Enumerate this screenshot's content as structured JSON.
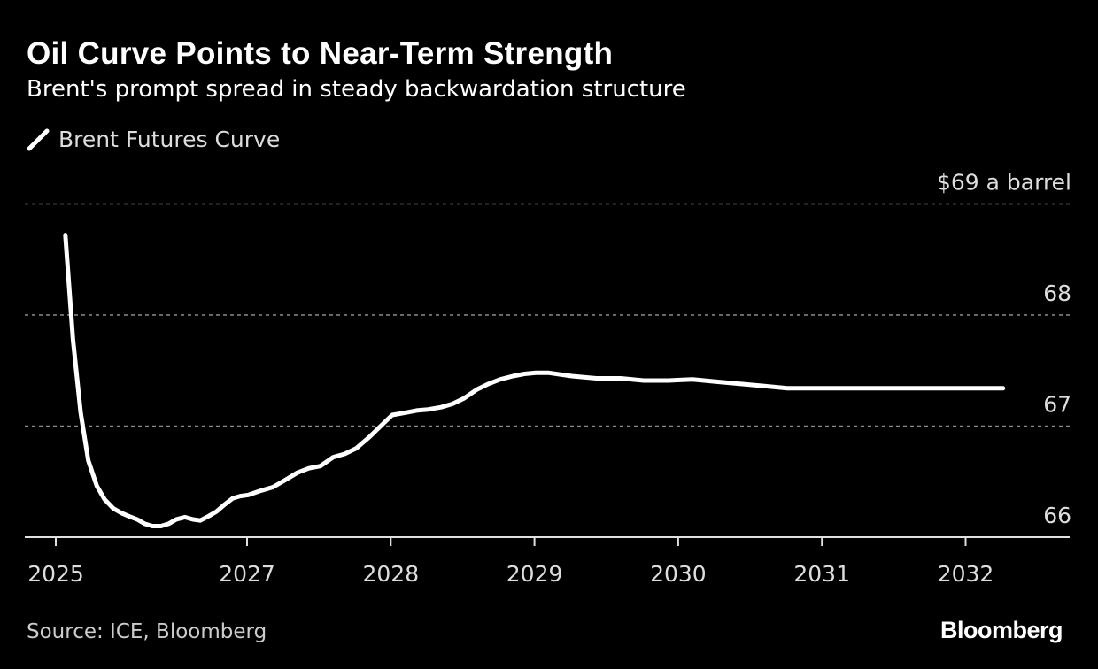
{
  "chart_data": {
    "type": "line",
    "title": "Oil Curve Points to Near-Term Strength",
    "subtitle": "Brent's prompt spread in steady backwardation structure",
    "series": [
      {
        "name": "Brent Futures Curve",
        "x": [
          2025.1,
          2025.18,
          2025.26,
          2025.34,
          2025.43,
          2025.51,
          2025.6,
          2025.68,
          2025.76,
          2025.85,
          2025.93,
          2026.01,
          2026.1,
          2026.18,
          2026.26,
          2026.35,
          2026.43,
          2026.51,
          2026.6,
          2026.68,
          2026.76,
          2026.85,
          2026.93,
          2027.01,
          2027.1,
          2027.18,
          2027.26,
          2027.35,
          2027.43,
          2027.51,
          2027.6,
          2027.68,
          2027.76,
          2027.85,
          2027.93,
          2028.01,
          2028.1,
          2028.18,
          2028.26,
          2028.35,
          2028.43,
          2028.51,
          2028.6,
          2028.68,
          2028.76,
          2028.85,
          2028.93,
          2029.01,
          2029.1,
          2029.26,
          2029.43,
          2029.6,
          2029.76,
          2029.93,
          2030.1,
          2030.26,
          2030.43,
          2030.6,
          2030.76,
          2030.93,
          2031.1,
          2031.26,
          2031.43,
          2031.6,
          2031.76,
          2031.93,
          2032.1,
          2032.26
        ],
        "y": [
          68.72,
          67.78,
          67.12,
          66.69,
          66.46,
          66.34,
          66.26,
          66.22,
          66.19,
          66.16,
          66.12,
          66.1,
          66.1,
          66.12,
          66.16,
          66.18,
          66.16,
          66.15,
          66.19,
          66.23,
          66.29,
          66.35,
          66.37,
          66.38,
          66.42,
          66.45,
          66.51,
          66.58,
          66.62,
          66.64,
          66.72,
          66.75,
          66.8,
          66.9,
          67.0,
          67.1,
          67.12,
          67.14,
          67.15,
          67.17,
          67.2,
          67.25,
          67.33,
          67.38,
          67.42,
          67.45,
          67.47,
          67.48,
          67.48,
          67.45,
          67.43,
          67.43,
          67.41,
          67.41,
          67.42,
          67.4,
          67.38,
          67.36,
          67.34,
          67.34,
          67.34,
          67.34,
          67.34,
          67.34,
          67.34,
          67.34,
          67.34,
          67.34
        ]
      }
    ],
    "y_unit_label": "$69 a barrel",
    "yticks": [
      66,
      67,
      68,
      69
    ],
    "ytick_labels": [
      "66",
      "67",
      "68",
      "$69 a barrel"
    ],
    "ylim": [
      66,
      69
    ],
    "xticks": [
      2025,
      2027,
      2028,
      2029,
      2030,
      2031,
      2032
    ],
    "xtick_labels": [
      "2025",
      "2027",
      "2028",
      "2029",
      "2030",
      "2031",
      "2032"
    ],
    "grid": true,
    "legend_position": "top-left",
    "colors": {
      "background": "#000000",
      "line": "#ffffff",
      "grid": "#8a8a8a",
      "text": "#dddddd"
    }
  },
  "legend": {
    "label": "Brent Futures Curve"
  },
  "footer": {
    "source": "Source: ICE, Bloomberg",
    "brand": "Bloomberg"
  }
}
